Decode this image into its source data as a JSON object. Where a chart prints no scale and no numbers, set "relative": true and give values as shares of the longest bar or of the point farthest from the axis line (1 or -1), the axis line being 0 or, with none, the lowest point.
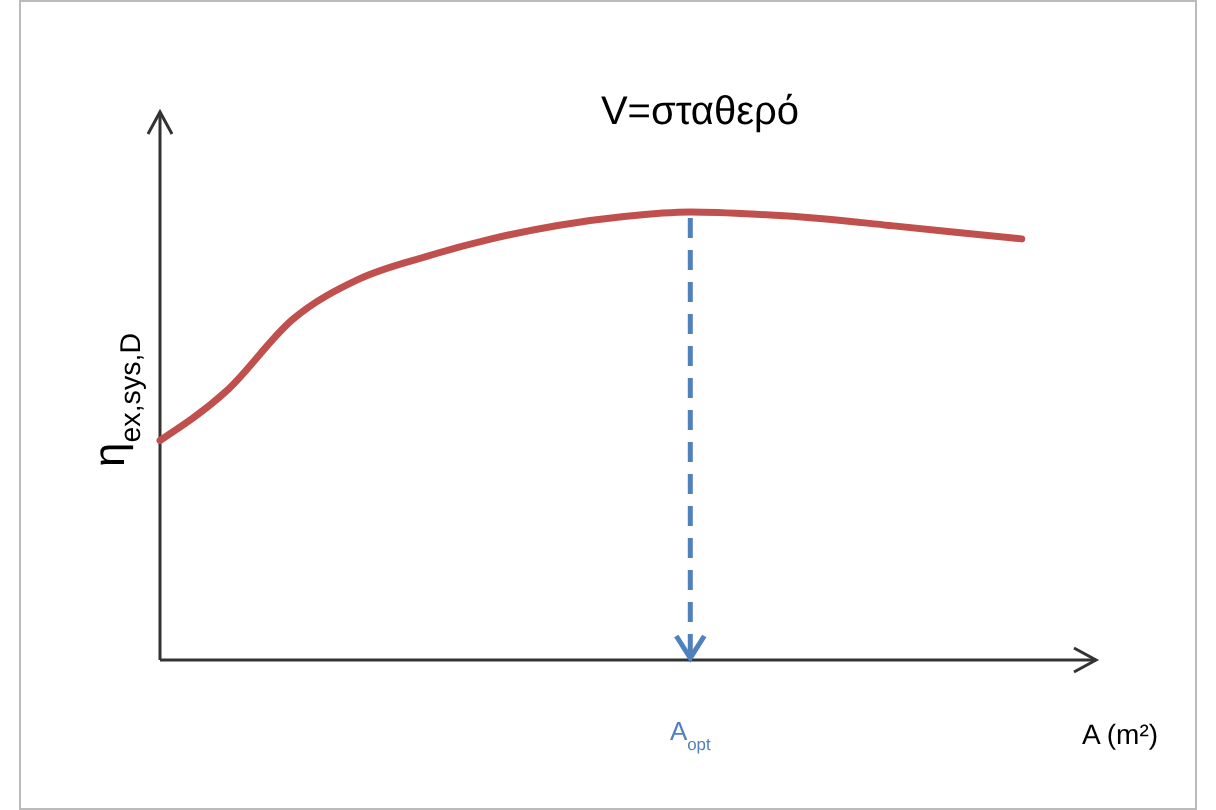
{
  "chart_data": {
    "type": "line",
    "title": "V=σταθερό",
    "xlabel": "A (m²)",
    "ylabel": "η$_{ex,sys,D}$",
    "relative": true,
    "categories": [
      null,
      null,
      null,
      null,
      null,
      null,
      null,
      null,
      null,
      null,
      null,
      null,
      null,
      null
    ],
    "series": [
      {
        "color": "#c0504d",
        "values": [
          0.49,
          0.6,
          0.76,
          0.85,
          0.9,
          0.94,
          0.97,
          0.99,
          1.0,
          0.995,
          0.985,
          0.97,
          0.955,
          0.94
        ]
      }
    ],
    "annotations": [
      "A$_{opt}$"
    ],
    "line_style": "solid"
  }
}
